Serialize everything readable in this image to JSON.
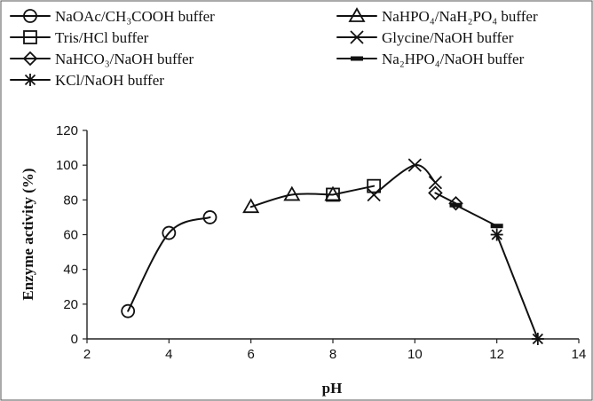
{
  "chart_data": {
    "type": "line",
    "title": "",
    "xlabel": "pH",
    "ylabel": "Enzyme activity (%)",
    "xlim": [
      2,
      14
    ],
    "ylim": [
      0,
      120
    ],
    "xticks": [
      2,
      4,
      6,
      8,
      10,
      12,
      14
    ],
    "yticks": [
      0,
      20,
      40,
      60,
      80,
      100,
      120
    ],
    "grid": false,
    "legend_position": "top",
    "series": [
      {
        "name": "NaOAc/CH₃COOH buffer",
        "marker": "circle",
        "x": [
          3,
          4,
          5
        ],
        "y": [
          16,
          61,
          70
        ]
      },
      {
        "name": "NaHPO₄/NaH₂PO₄ buffer",
        "marker": "triangle",
        "x": [
          6,
          7,
          8
        ],
        "y": [
          76,
          83,
          83
        ]
      },
      {
        "name": "Tris/HCl buffer",
        "marker": "square",
        "x": [
          8,
          9
        ],
        "y": [
          83,
          88
        ]
      },
      {
        "name": "Glycine/NaOH buffer",
        "marker": "x",
        "x": [
          9,
          10,
          10.5
        ],
        "y": [
          83,
          100,
          90
        ]
      },
      {
        "name": "NaHCO₃/NaOH buffer",
        "marker": "diamond",
        "x": [
          10.5,
          11
        ],
        "y": [
          84,
          78
        ]
      },
      {
        "name": "Na₂HPO₄/NaOH buffer",
        "marker": "dash",
        "x": [
          11,
          12
        ],
        "y": [
          77,
          65
        ]
      },
      {
        "name": "KCl/NaOH buffer",
        "marker": "star",
        "x": [
          12,
          13
        ],
        "y": [
          60,
          0
        ]
      }
    ]
  }
}
